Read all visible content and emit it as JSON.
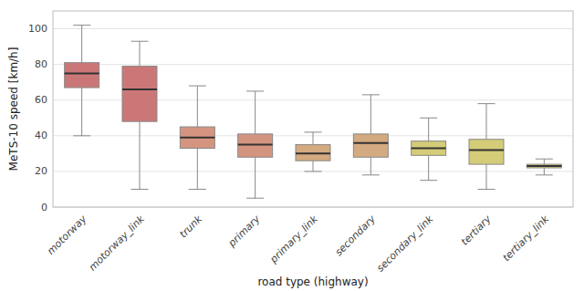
{
  "chart_data": {
    "type": "box",
    "xlabel": "road type (highway)",
    "ylabel": "MeTS-10 speed [km/h]",
    "categories": [
      "motorway",
      "motorway_link",
      "trunk",
      "primary",
      "primary_link",
      "secondary",
      "secondary_link",
      "tertiary",
      "tertiary_link"
    ],
    "values": [
      {
        "whislo": 40,
        "q1": 67,
        "med": 75,
        "q3": 81,
        "whishi": 102
      },
      {
        "whislo": 10,
        "q1": 48,
        "med": 66,
        "q3": 79,
        "whishi": 93
      },
      {
        "whislo": 10,
        "q1": 33,
        "med": 39,
        "q3": 45,
        "whishi": 68
      },
      {
        "whislo": 5,
        "q1": 28,
        "med": 35,
        "q3": 41,
        "whishi": 65
      },
      {
        "whislo": 20,
        "q1": 26,
        "med": 30,
        "q3": 35,
        "whishi": 42
      },
      {
        "whislo": 18,
        "q1": 28,
        "med": 36,
        "q3": 41,
        "whishi": 63
      },
      {
        "whislo": 15,
        "q1": 29,
        "med": 33,
        "q3": 37,
        "whishi": 50
      },
      {
        "whislo": 10,
        "q1": 24,
        "med": 32,
        "q3": 38,
        "whishi": 58
      },
      {
        "whislo": 18,
        "q1": 22,
        "med": 23,
        "q3": 24,
        "whishi": 27
      }
    ],
    "colors": [
      "#cc7777",
      "#cc7777",
      "#d49580",
      "#d49580",
      "#d4aa80",
      "#d4aa80",
      "#d4cc78",
      "#d4cc78",
      "#d4cc78"
    ],
    "ylim": [
      0,
      110
    ],
    "yticks": [
      0,
      20,
      40,
      60,
      80,
      100
    ],
    "grid": true
  }
}
